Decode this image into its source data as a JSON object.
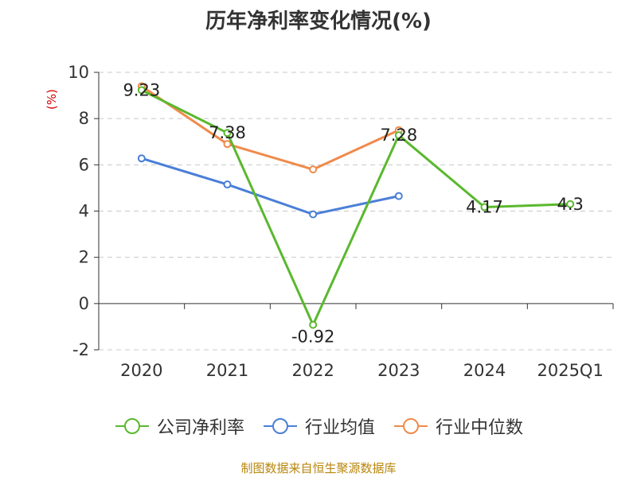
{
  "chart_data": {
    "type": "line",
    "title": "历年净利率变化情况(%)",
    "ylabel": "(%)",
    "categories": [
      "2020",
      "2021",
      "2022",
      "2023",
      "2024",
      "2025Q1"
    ],
    "ylim": [
      -2,
      10
    ],
    "yticks": [
      -2,
      0,
      2,
      4,
      6,
      8,
      10
    ],
    "grid": true,
    "legend_position": "bottom",
    "series": [
      {
        "name": "公司净利率",
        "color": "#5ab82e",
        "values": [
          9.23,
          7.38,
          -0.92,
          7.28,
          4.17,
          4.3
        ],
        "labels": [
          "9.23",
          "7.38",
          "-0.92",
          "7.28",
          "4.17",
          "4.3"
        ]
      },
      {
        "name": "行业均值",
        "color": "#4a7fd8",
        "values": [
          6.28,
          5.15,
          3.86,
          4.65,
          null,
          null
        ]
      },
      {
        "name": "行业中位数",
        "color": "#f08a4b",
        "values": [
          9.4,
          6.9,
          5.8,
          7.5,
          null,
          null
        ]
      }
    ]
  },
  "source": "制图数据来自恒生聚源数据库"
}
